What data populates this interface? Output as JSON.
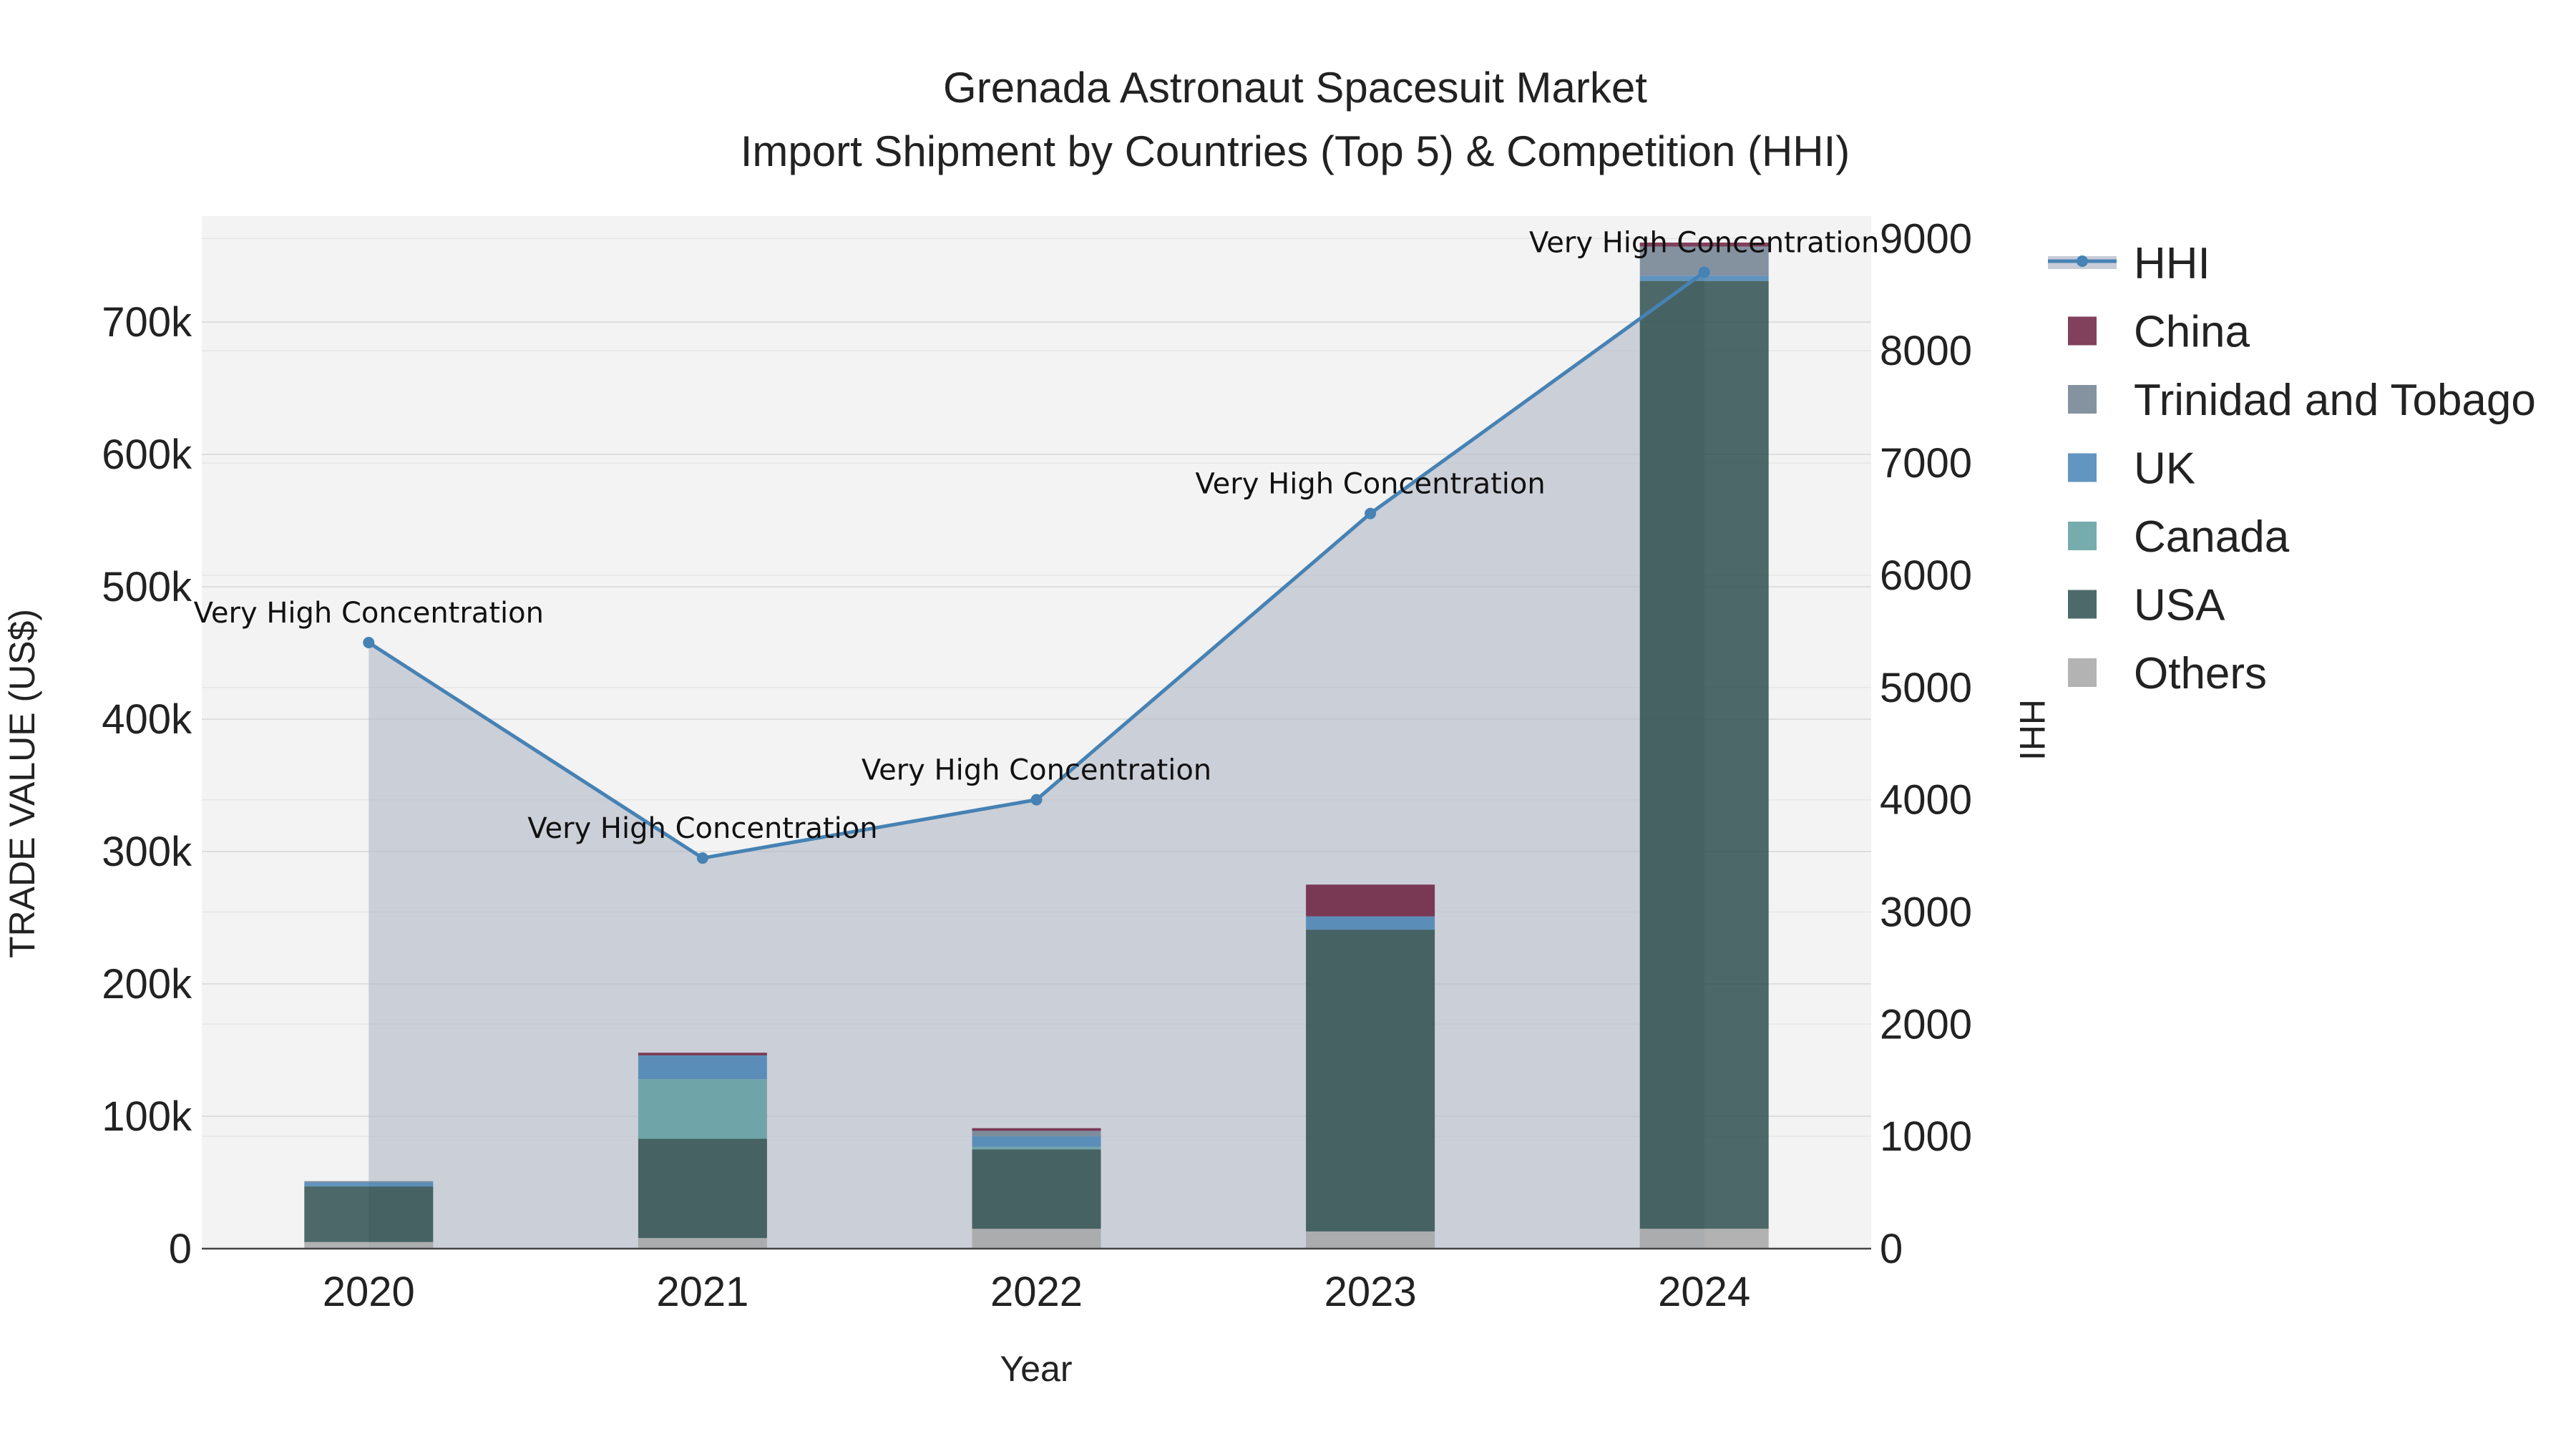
{
  "chart_data": {
    "type": "bar",
    "title_line1": "Grenada Astronaut Spacesuit Market",
    "title_line2": "Import Shipment by Countries (Top 5) & Competition (HHI)",
    "xlabel": "Year",
    "ylabel": "TRADE VALUE (US$)",
    "y2label": "HHI",
    "categories": [
      "2020",
      "2021",
      "2022",
      "2023",
      "2024"
    ],
    "ylim": [
      0,
      780000
    ],
    "y_ticks": [
      0,
      100000,
      200000,
      300000,
      400000,
      500000,
      600000,
      700000
    ],
    "y_tick_labels": [
      "0",
      "100k",
      "200k",
      "300k",
      "400k",
      "500k",
      "600k",
      "700k"
    ],
    "y2lim": [
      0,
      9200
    ],
    "y2_ticks": [
      0,
      1000,
      2000,
      3000,
      4000,
      5000,
      6000,
      7000,
      8000,
      9000
    ],
    "y2_tick_labels": [
      "0",
      "1000",
      "2000",
      "3000",
      "4000",
      "5000",
      "6000",
      "7000",
      "8000",
      "9000"
    ],
    "series": [
      {
        "name": "Others",
        "color": "#a6a6a6",
        "values": [
          5000,
          8000,
          15000,
          13000,
          15000
        ]
      },
      {
        "name": "USA",
        "color": "#2f4f4f",
        "values": [
          42000,
          75000,
          60000,
          228000,
          716000
        ]
      },
      {
        "name": "Canada",
        "color": "#5f9ea0",
        "values": [
          0,
          45000,
          2000,
          0,
          0
        ]
      },
      {
        "name": "UK",
        "color": "#4682b4",
        "values": [
          3000,
          18000,
          8000,
          10000,
          4000
        ]
      },
      {
        "name": "Trinidad and Tobago",
        "color": "#708090",
        "values": [
          1000,
          0,
          4000,
          0,
          22000
        ]
      },
      {
        "name": "China",
        "color": "#6b1e3e",
        "values": [
          0,
          2000,
          2000,
          24000,
          3000
        ]
      }
    ],
    "hhi": {
      "name": "HHI",
      "color": "#4682b4",
      "values": [
        5400,
        3480,
        4000,
        6550,
        8700
      ],
      "labels": [
        "Very High Concentration",
        "Very High Concentration",
        "Very High Concentration",
        "Very High Concentration",
        "Very High Concentration"
      ]
    },
    "legend": [
      "HHI",
      "China",
      "Trinidad and Tobago",
      "UK",
      "Canada",
      "USA",
      "Others"
    ],
    "legend_position": "right"
  }
}
